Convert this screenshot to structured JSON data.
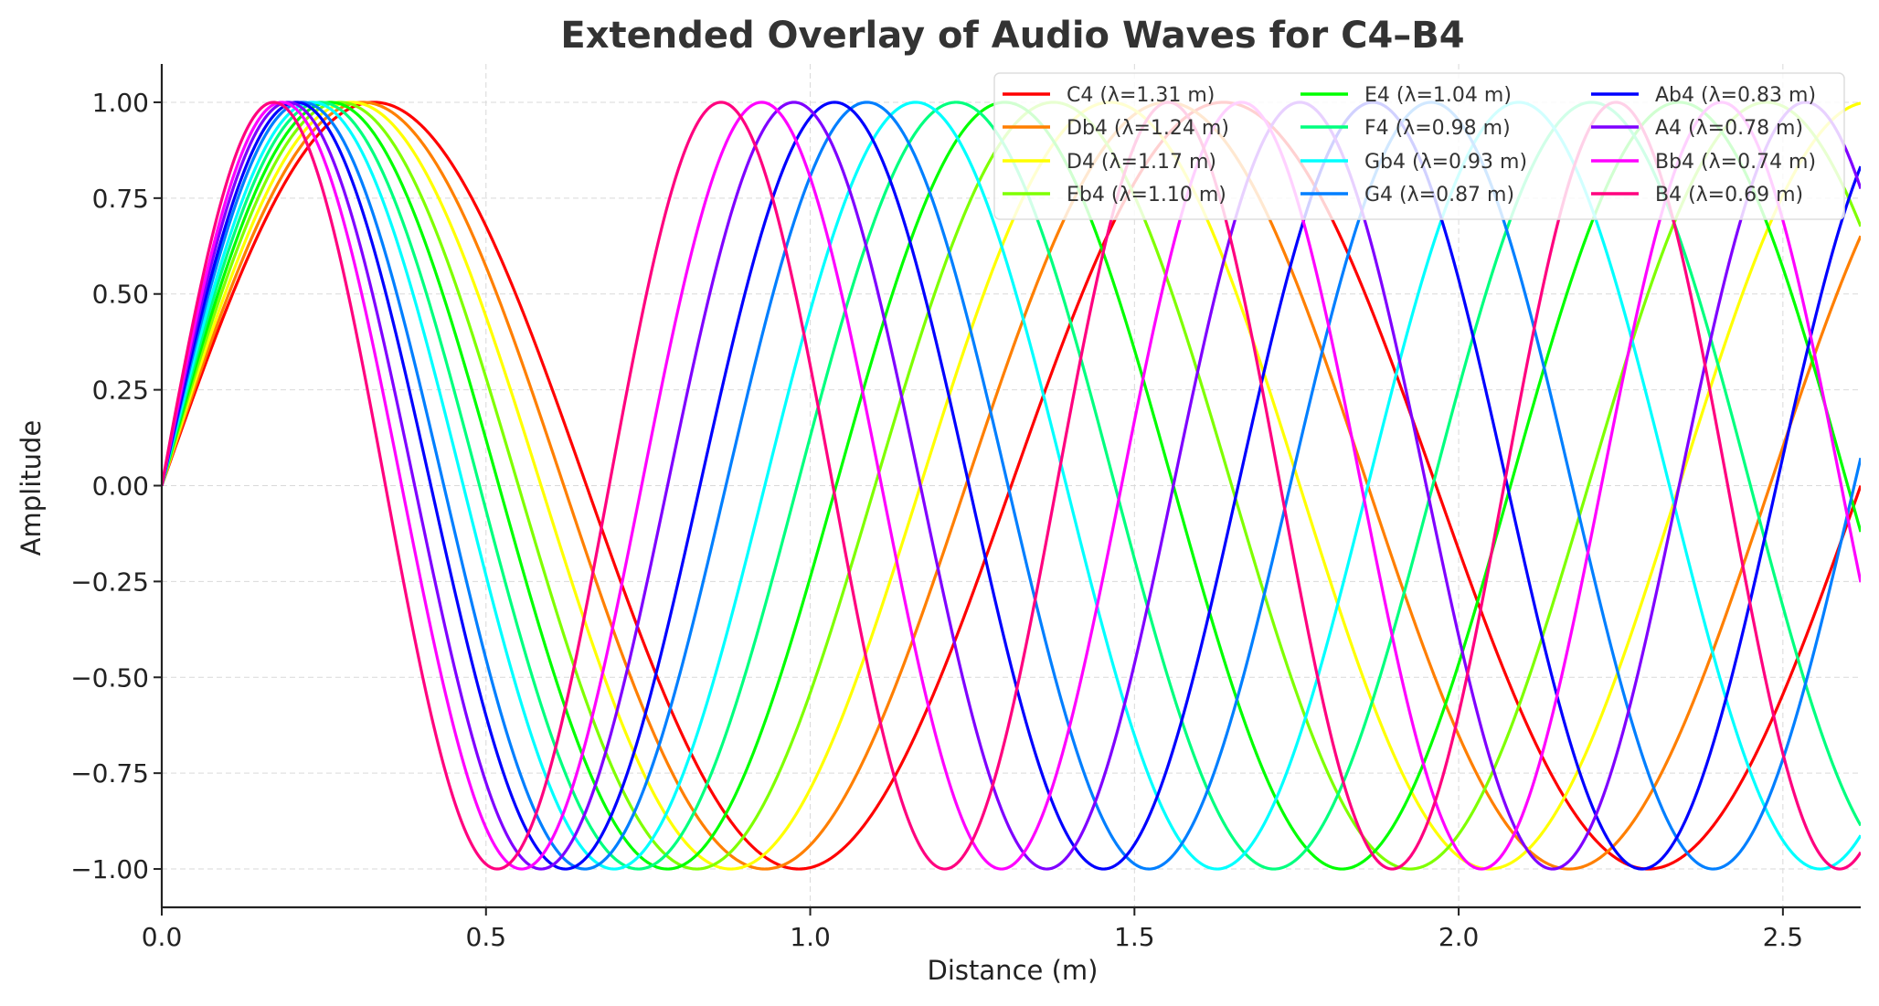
{
  "chart_data": {
    "type": "line",
    "title": "Extended Overlay of Audio Waves for C4–B4",
    "xlabel": "Distance (m)",
    "ylabel": "Amplitude",
    "xlim": [
      0,
      2.62
    ],
    "ylim": [
      -1.1,
      1.1
    ],
    "x_ticks": [
      0.0,
      0.5,
      1.0,
      1.5,
      2.0,
      2.5
    ],
    "x_tick_labels": [
      "0.0",
      "0.5",
      "1.0",
      "1.5",
      "2.0",
      "2.5"
    ],
    "y_ticks": [
      1.0,
      0.75,
      0.5,
      0.25,
      0.0,
      -0.25,
      -0.5,
      -0.75,
      -1.0
    ],
    "y_tick_labels": [
      "1.00",
      "0.75",
      "0.50",
      "0.25",
      "0.00",
      "−0.25",
      "−0.50",
      "−0.75",
      "−1.00"
    ],
    "grid": true,
    "legend_position": "top-right",
    "legend_columns": 3,
    "function": "amplitude = sin(2π · distance / wavelength)",
    "series": [
      {
        "name": "C4",
        "label": "C4 (λ=1.31 m)",
        "wavelength": 1.31,
        "color": "#ff0000"
      },
      {
        "name": "Db4",
        "label": "Db4 (λ=1.24 m)",
        "wavelength": 1.24,
        "color": "#ff7f00"
      },
      {
        "name": "D4",
        "label": "D4 (λ=1.17 m)",
        "wavelength": 1.17,
        "color": "#ffff00"
      },
      {
        "name": "Eb4",
        "label": "Eb4 (λ=1.10 m)",
        "wavelength": 1.1,
        "color": "#7fff00"
      },
      {
        "name": "E4",
        "label": "E4 (λ=1.04 m)",
        "wavelength": 1.04,
        "color": "#00ff00"
      },
      {
        "name": "F4",
        "label": "F4 (λ=0.98 m)",
        "wavelength": 0.98,
        "color": "#00ff7f"
      },
      {
        "name": "Gb4",
        "label": "Gb4 (λ=0.93 m)",
        "wavelength": 0.93,
        "color": "#00ffff"
      },
      {
        "name": "G4",
        "label": "G4 (λ=0.87 m)",
        "wavelength": 0.87,
        "color": "#007fff"
      },
      {
        "name": "Ab4",
        "label": "Ab4 (λ=0.83 m)",
        "wavelength": 0.83,
        "color": "#0000ff"
      },
      {
        "name": "A4",
        "label": "A4 (λ=0.78 m)",
        "wavelength": 0.78,
        "color": "#7f00ff"
      },
      {
        "name": "Bb4",
        "label": "Bb4 (λ=0.74 m)",
        "wavelength": 0.74,
        "color": "#ff00ff"
      },
      {
        "name": "B4",
        "label": "B4 (λ=0.69 m)",
        "wavelength": 0.69,
        "color": "#ff007f"
      }
    ]
  }
}
